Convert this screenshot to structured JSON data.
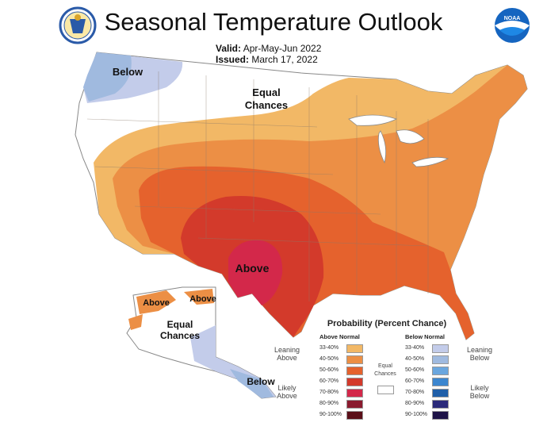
{
  "header": {
    "title": "Seasonal Temperature Outlook",
    "valid_label": "Valid:",
    "valid_value": "Apr-May-Jun 2022",
    "issued_label": "Issued:",
    "issued_value": "March 17, 2022"
  },
  "logos": {
    "left": "doc-seal-icon",
    "right_text": "NOAA"
  },
  "map_labels": {
    "below_nw": "Below",
    "equal_1": "Equal",
    "equal_2": "Chances",
    "above": "Above",
    "ak_above_1": "Above",
    "ak_above_2": "Above",
    "ak_equal_1": "Equal",
    "ak_equal_2": "Chances",
    "ak_below": "Below"
  },
  "legend": {
    "title": "Probability (Percent Chance)",
    "above_header": "Above Normal",
    "below_header": "Below Normal",
    "leaning_above": [
      "Leaning",
      "Above"
    ],
    "likely_above": [
      "Likely",
      "Above"
    ],
    "leaning_below": [
      "Leaning",
      "Below"
    ],
    "likely_below": [
      "Likely",
      "Below"
    ],
    "equal_chances": [
      "Equal",
      "Chances"
    ],
    "above_bins": [
      {
        "label": "33-40%",
        "color": "#f2b866"
      },
      {
        "label": "40-50%",
        "color": "#ec8f45"
      },
      {
        "label": "50-60%",
        "color": "#e5622d"
      },
      {
        "label": "60-70%",
        "color": "#d33a2b"
      },
      {
        "label": "70-80%",
        "color": "#d3284a"
      },
      {
        "label": "80-90%",
        "color": "#8a1a2e"
      },
      {
        "label": "90-100%",
        "color": "#5a0f18"
      }
    ],
    "below_bins": [
      {
        "label": "33-40%",
        "color": "#c3ccea"
      },
      {
        "label": "40-50%",
        "color": "#a0badf"
      },
      {
        "label": "50-60%",
        "color": "#6aa6de"
      },
      {
        "label": "60-70%",
        "color": "#3c86cf"
      },
      {
        "label": "70-80%",
        "color": "#1f5fa8"
      },
      {
        "label": "80-90%",
        "color": "#2b2a7a"
      },
      {
        "label": "90-100%",
        "color": "#1e1347"
      }
    ]
  }
}
